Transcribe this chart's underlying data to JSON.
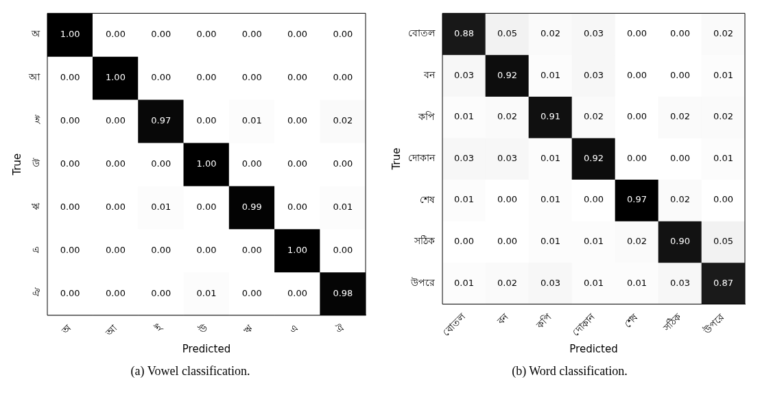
{
  "chart_data": [
    {
      "type": "heatmap",
      "title": "(a) Vowel classification.",
      "xlabel": "Predicted",
      "ylabel": "True",
      "categories": [
        "অ",
        "আ",
        "ই",
        "উ",
        "ঋ",
        "এ",
        "ঐ"
      ],
      "y_categories": [
        "অ",
        "আ",
        "ই",
        "উ",
        "ঋ",
        "এ",
        "ঐ"
      ],
      "cells": [
        [
          1.0,
          0,
          0,
          0,
          0,
          0,
          0
        ],
        [
          0,
          1.0,
          0,
          0,
          0,
          0,
          0
        ],
        [
          0,
          0,
          0.97,
          0,
          0.01,
          0,
          0.02
        ],
        [
          0,
          0,
          0,
          1.0,
          0,
          0,
          0
        ],
        [
          0,
          0,
          0.01,
          0,
          0.99,
          0,
          0.01
        ],
        [
          0,
          0,
          0,
          0,
          0,
          1.0,
          0
        ],
        [
          0,
          0,
          0,
          0.01,
          0,
          0,
          0.98
        ]
      ],
      "cell_labels": [
        [
          "1.00",
          "0.00",
          "0.00",
          "0.00",
          "0.00",
          "0.00",
          "0.00"
        ],
        [
          "0.00",
          "1.00",
          "0.00",
          "0.00",
          "0.00",
          "0.00",
          "0.00"
        ],
        [
          "0.00",
          "0.00",
          "0.97",
          "0.00",
          "0.01",
          "0.00",
          "0.02"
        ],
        [
          "0.00",
          "0.00",
          "0.00",
          "1.00",
          "0.00",
          "0.00",
          "0.00"
        ],
        [
          "0.00",
          "0.00",
          "0.01",
          "0.00",
          "0.99",
          "0.00",
          "0.01"
        ],
        [
          "0.00",
          "0.00",
          "0.00",
          "0.00",
          "0.00",
          "1.00",
          "0.00"
        ],
        [
          "0.00",
          "0.00",
          "0.00",
          "0.01",
          "0.00",
          "0.00",
          "0.98"
        ]
      ]
    },
    {
      "type": "heatmap",
      "title": "(b) Word classification.",
      "xlabel": "Predicted",
      "ylabel": "True",
      "categories": [
        "বোতল",
        "বন",
        "কপি",
        "দোকান",
        "শেষ",
        "সঠিক",
        "উপরে"
      ],
      "y_categories": [
        "বোতল",
        "বন",
        "কপি",
        "দোকান",
        "শেষ",
        "সঠিক",
        "উপরে"
      ],
      "cells": [
        [
          0.88,
          0.05,
          0.02,
          0.03,
          0,
          0,
          0.02
        ],
        [
          0.03,
          0.92,
          0.01,
          0.03,
          0,
          0,
          0.01
        ],
        [
          0.01,
          0.02,
          0.91,
          0.02,
          0,
          0.02,
          0.02
        ],
        [
          0.03,
          0.03,
          0.01,
          0.92,
          0,
          0,
          0.01
        ],
        [
          0.01,
          0,
          0.01,
          0,
          0.97,
          0.02,
          0
        ],
        [
          0,
          0,
          0.01,
          0.01,
          0.02,
          0.9,
          0.05
        ],
        [
          0.01,
          0.02,
          0.03,
          0.01,
          0.01,
          0.03,
          0.87
        ]
      ],
      "cell_labels": [
        [
          "0.88",
          "0.05",
          "0.02",
          "0.03",
          "0.00",
          "0.00",
          "0.02"
        ],
        [
          "0.03",
          "0.92",
          "0.01",
          "0.03",
          "0.00",
          "0.00",
          "0.01"
        ],
        [
          "0.01",
          "0.02",
          "0.91",
          "0.02",
          "0.00",
          "0.02",
          "0.02"
        ],
        [
          "0.03",
          "0.03",
          "0.01",
          "0.92",
          "0.00",
          "0.00",
          "0.01"
        ],
        [
          "0.01",
          "0.00",
          "0.01",
          "0.00",
          "0.97",
          "0.02",
          "0.00"
        ],
        [
          "0.00",
          "0.00",
          "0.01",
          "0.01",
          "0.02",
          "0.90",
          "0.05"
        ],
        [
          "0.01",
          "0.02",
          "0.03",
          "0.01",
          "0.01",
          "0.03",
          "0.87"
        ]
      ]
    }
  ]
}
